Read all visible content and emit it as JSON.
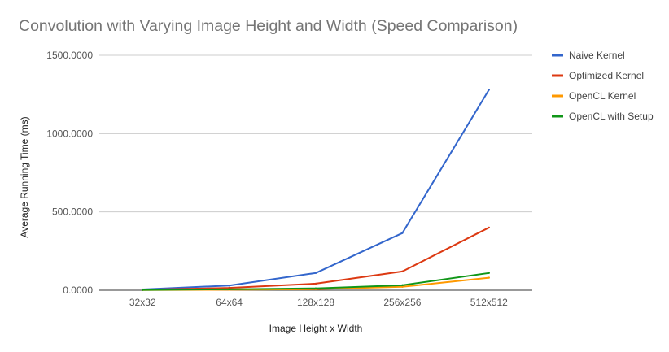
{
  "chart_data": {
    "type": "line",
    "title": "Convolution with Varying Image Height and Width (Speed Comparison)",
    "xlabel": "Image Height x Width",
    "ylabel": "Average Running Time (ms)",
    "categories": [
      "32x32",
      "64x64",
      "128x128",
      "256x256",
      "512x512"
    ],
    "ylim": [
      0,
      1500
    ],
    "yticks": [
      "0.0000",
      "500.0000",
      "1000.0000",
      "1500.0000"
    ],
    "ytick_values": [
      0,
      500,
      1000,
      1500
    ],
    "grid": true,
    "legend_position": "right",
    "series": [
      {
        "name": "Naive Kernel",
        "color": "#3366cc",
        "values": [
          5,
          30,
          110,
          365,
          1280
        ]
      },
      {
        "name": "Optimized Kernel",
        "color": "#dc3912",
        "values": [
          3,
          15,
          42,
          120,
          400
        ]
      },
      {
        "name": "OpenCL Kernel",
        "color": "#ff9900",
        "values": [
          1,
          3,
          7,
          22,
          80
        ]
      },
      {
        "name": "OpenCL with Setup",
        "color": "#109618",
        "values": [
          2,
          6,
          12,
          32,
          110
        ]
      }
    ]
  }
}
